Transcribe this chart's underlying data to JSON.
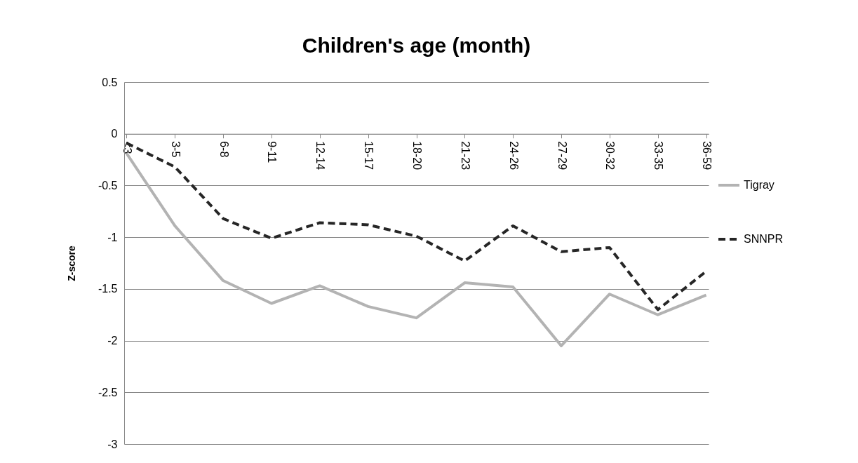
{
  "chart_data": {
    "type": "line",
    "title": "Children's age (month)",
    "ylabel": "Z-score",
    "categories": [
      "<3",
      "3-5",
      "6-8",
      "9-11",
      "12-14",
      "15-17",
      "18-20",
      "21-23",
      "24-26",
      "27-29",
      "30-32",
      "33-35",
      "36-59"
    ],
    "series": [
      {
        "name": "Tigray",
        "color": "#b3b3b3",
        "line_style": "solid",
        "values": [
          -0.19,
          -0.89,
          -1.42,
          -1.64,
          -1.47,
          -1.67,
          -1.78,
          -1.44,
          -1.48,
          -2.05,
          -1.55,
          -1.75,
          -1.56
        ]
      },
      {
        "name": "SNNPR",
        "color": "#262626",
        "line_style": "dashed",
        "values": [
          -0.09,
          -0.32,
          -0.82,
          -1.01,
          -0.86,
          -0.88,
          -0.99,
          -1.23,
          -0.89,
          -1.14,
          -1.1,
          -1.7,
          -1.33
        ]
      }
    ],
    "ylim": [
      -3,
      0.5
    ],
    "yticks": [
      -3,
      -2.5,
      -2,
      -1.5,
      -1,
      -0.5,
      0,
      0.5
    ],
    "grid": "y",
    "legend": "right",
    "marker": "none"
  }
}
